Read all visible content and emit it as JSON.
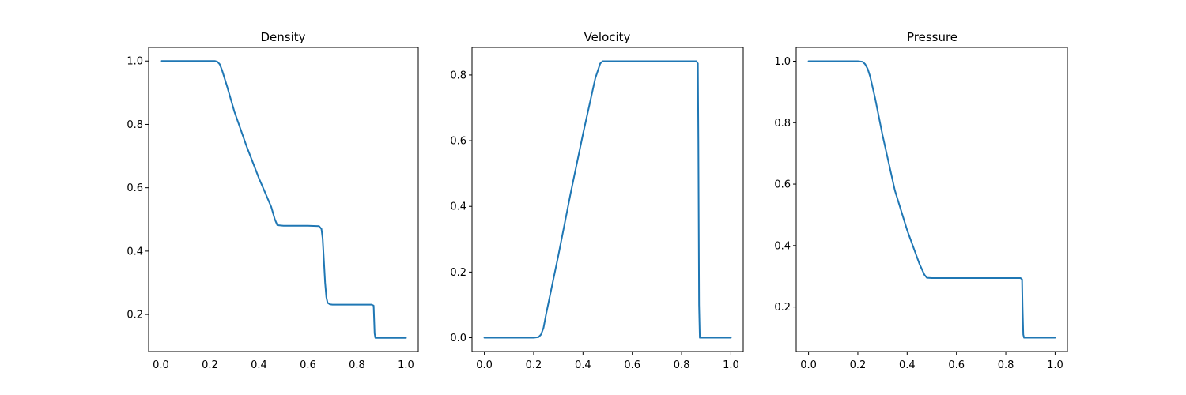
{
  "colors": {
    "series": "#1f77b4",
    "axes": "#000000",
    "background": "#ffffff"
  },
  "chart_data": [
    {
      "type": "line",
      "title": "Density",
      "xlabel": "",
      "ylabel": "",
      "xlim": [
        -0.05,
        1.05
      ],
      "ylim": [
        0.083,
        1.043
      ],
      "xticks": [
        0.0,
        0.2,
        0.4,
        0.6,
        0.8,
        1.0
      ],
      "xtick_labels": [
        "0.0",
        "0.2",
        "0.4",
        "0.6",
        "0.8",
        "1.0"
      ],
      "yticks": [
        0.2,
        0.4,
        0.6,
        0.8,
        1.0
      ],
      "ytick_labels": [
        "0.2",
        "0.4",
        "0.6",
        "0.8",
        "1.0"
      ],
      "grid": false,
      "series": [
        {
          "x": [
            0.0,
            0.2,
            0.22,
            0.23,
            0.24,
            0.25,
            0.27,
            0.3,
            0.35,
            0.4,
            0.45,
            0.465,
            0.475,
            0.5,
            0.6,
            0.645,
            0.655,
            0.66,
            0.665,
            0.67,
            0.675,
            0.68,
            0.69,
            0.7,
            0.8,
            0.86,
            0.868,
            0.872,
            0.875,
            0.9,
            1.0
          ],
          "y": [
            1.0,
            1.0,
            1.0,
            0.998,
            0.99,
            0.97,
            0.92,
            0.84,
            0.73,
            0.63,
            0.54,
            0.5,
            0.482,
            0.48,
            0.48,
            0.479,
            0.47,
            0.44,
            0.37,
            0.3,
            0.255,
            0.237,
            0.232,
            0.231,
            0.231,
            0.231,
            0.228,
            0.14,
            0.126,
            0.126,
            0.126
          ]
        }
      ]
    },
    {
      "type": "line",
      "title": "Velocity",
      "xlabel": "",
      "ylabel": "",
      "xlim": [
        -0.05,
        1.05
      ],
      "ylim": [
        -0.042,
        0.884
      ],
      "xticks": [
        0.0,
        0.2,
        0.4,
        0.6,
        0.8,
        1.0
      ],
      "xtick_labels": [
        "0.0",
        "0.2",
        "0.4",
        "0.6",
        "0.8",
        "1.0"
      ],
      "yticks": [
        0.0,
        0.2,
        0.4,
        0.6,
        0.8
      ],
      "ytick_labels": [
        "0.0",
        "0.2",
        "0.4",
        "0.6",
        "0.8"
      ],
      "grid": false,
      "series": [
        {
          "x": [
            0.0,
            0.2,
            0.22,
            0.23,
            0.24,
            0.25,
            0.3,
            0.35,
            0.4,
            0.45,
            0.47,
            0.48,
            0.5,
            0.7,
            0.86,
            0.866,
            0.868,
            0.871,
            0.874,
            0.9,
            1.0
          ],
          "y": [
            0.0,
            0.0,
            0.002,
            0.01,
            0.03,
            0.07,
            0.25,
            0.44,
            0.62,
            0.79,
            0.835,
            0.842,
            0.842,
            0.842,
            0.842,
            0.835,
            0.6,
            0.1,
            0.0,
            0.0,
            0.0
          ]
        }
      ]
    },
    {
      "type": "line",
      "title": "Pressure",
      "xlabel": "",
      "ylabel": "",
      "xlim": [
        -0.05,
        1.05
      ],
      "ylim": [
        0.055,
        1.045
      ],
      "xticks": [
        0.0,
        0.2,
        0.4,
        0.6,
        0.8,
        1.0
      ],
      "xtick_labels": [
        "0.0",
        "0.2",
        "0.4",
        "0.6",
        "0.8",
        "1.0"
      ],
      "yticks": [
        0.2,
        0.4,
        0.6,
        0.8,
        1.0
      ],
      "ytick_labels": [
        "0.2",
        "0.4",
        "0.6",
        "0.8",
        "1.0"
      ],
      "grid": false,
      "series": [
        {
          "x": [
            0.0,
            0.2,
            0.22,
            0.23,
            0.24,
            0.25,
            0.27,
            0.3,
            0.35,
            0.4,
            0.45,
            0.47,
            0.48,
            0.5,
            0.7,
            0.86,
            0.866,
            0.868,
            0.871,
            0.874,
            0.9,
            1.0
          ],
          "y": [
            1.0,
            1.0,
            0.998,
            0.99,
            0.975,
            0.95,
            0.88,
            0.76,
            0.58,
            0.45,
            0.34,
            0.305,
            0.295,
            0.294,
            0.294,
            0.294,
            0.29,
            0.2,
            0.11,
            0.1,
            0.1,
            0.1
          ]
        }
      ]
    }
  ]
}
